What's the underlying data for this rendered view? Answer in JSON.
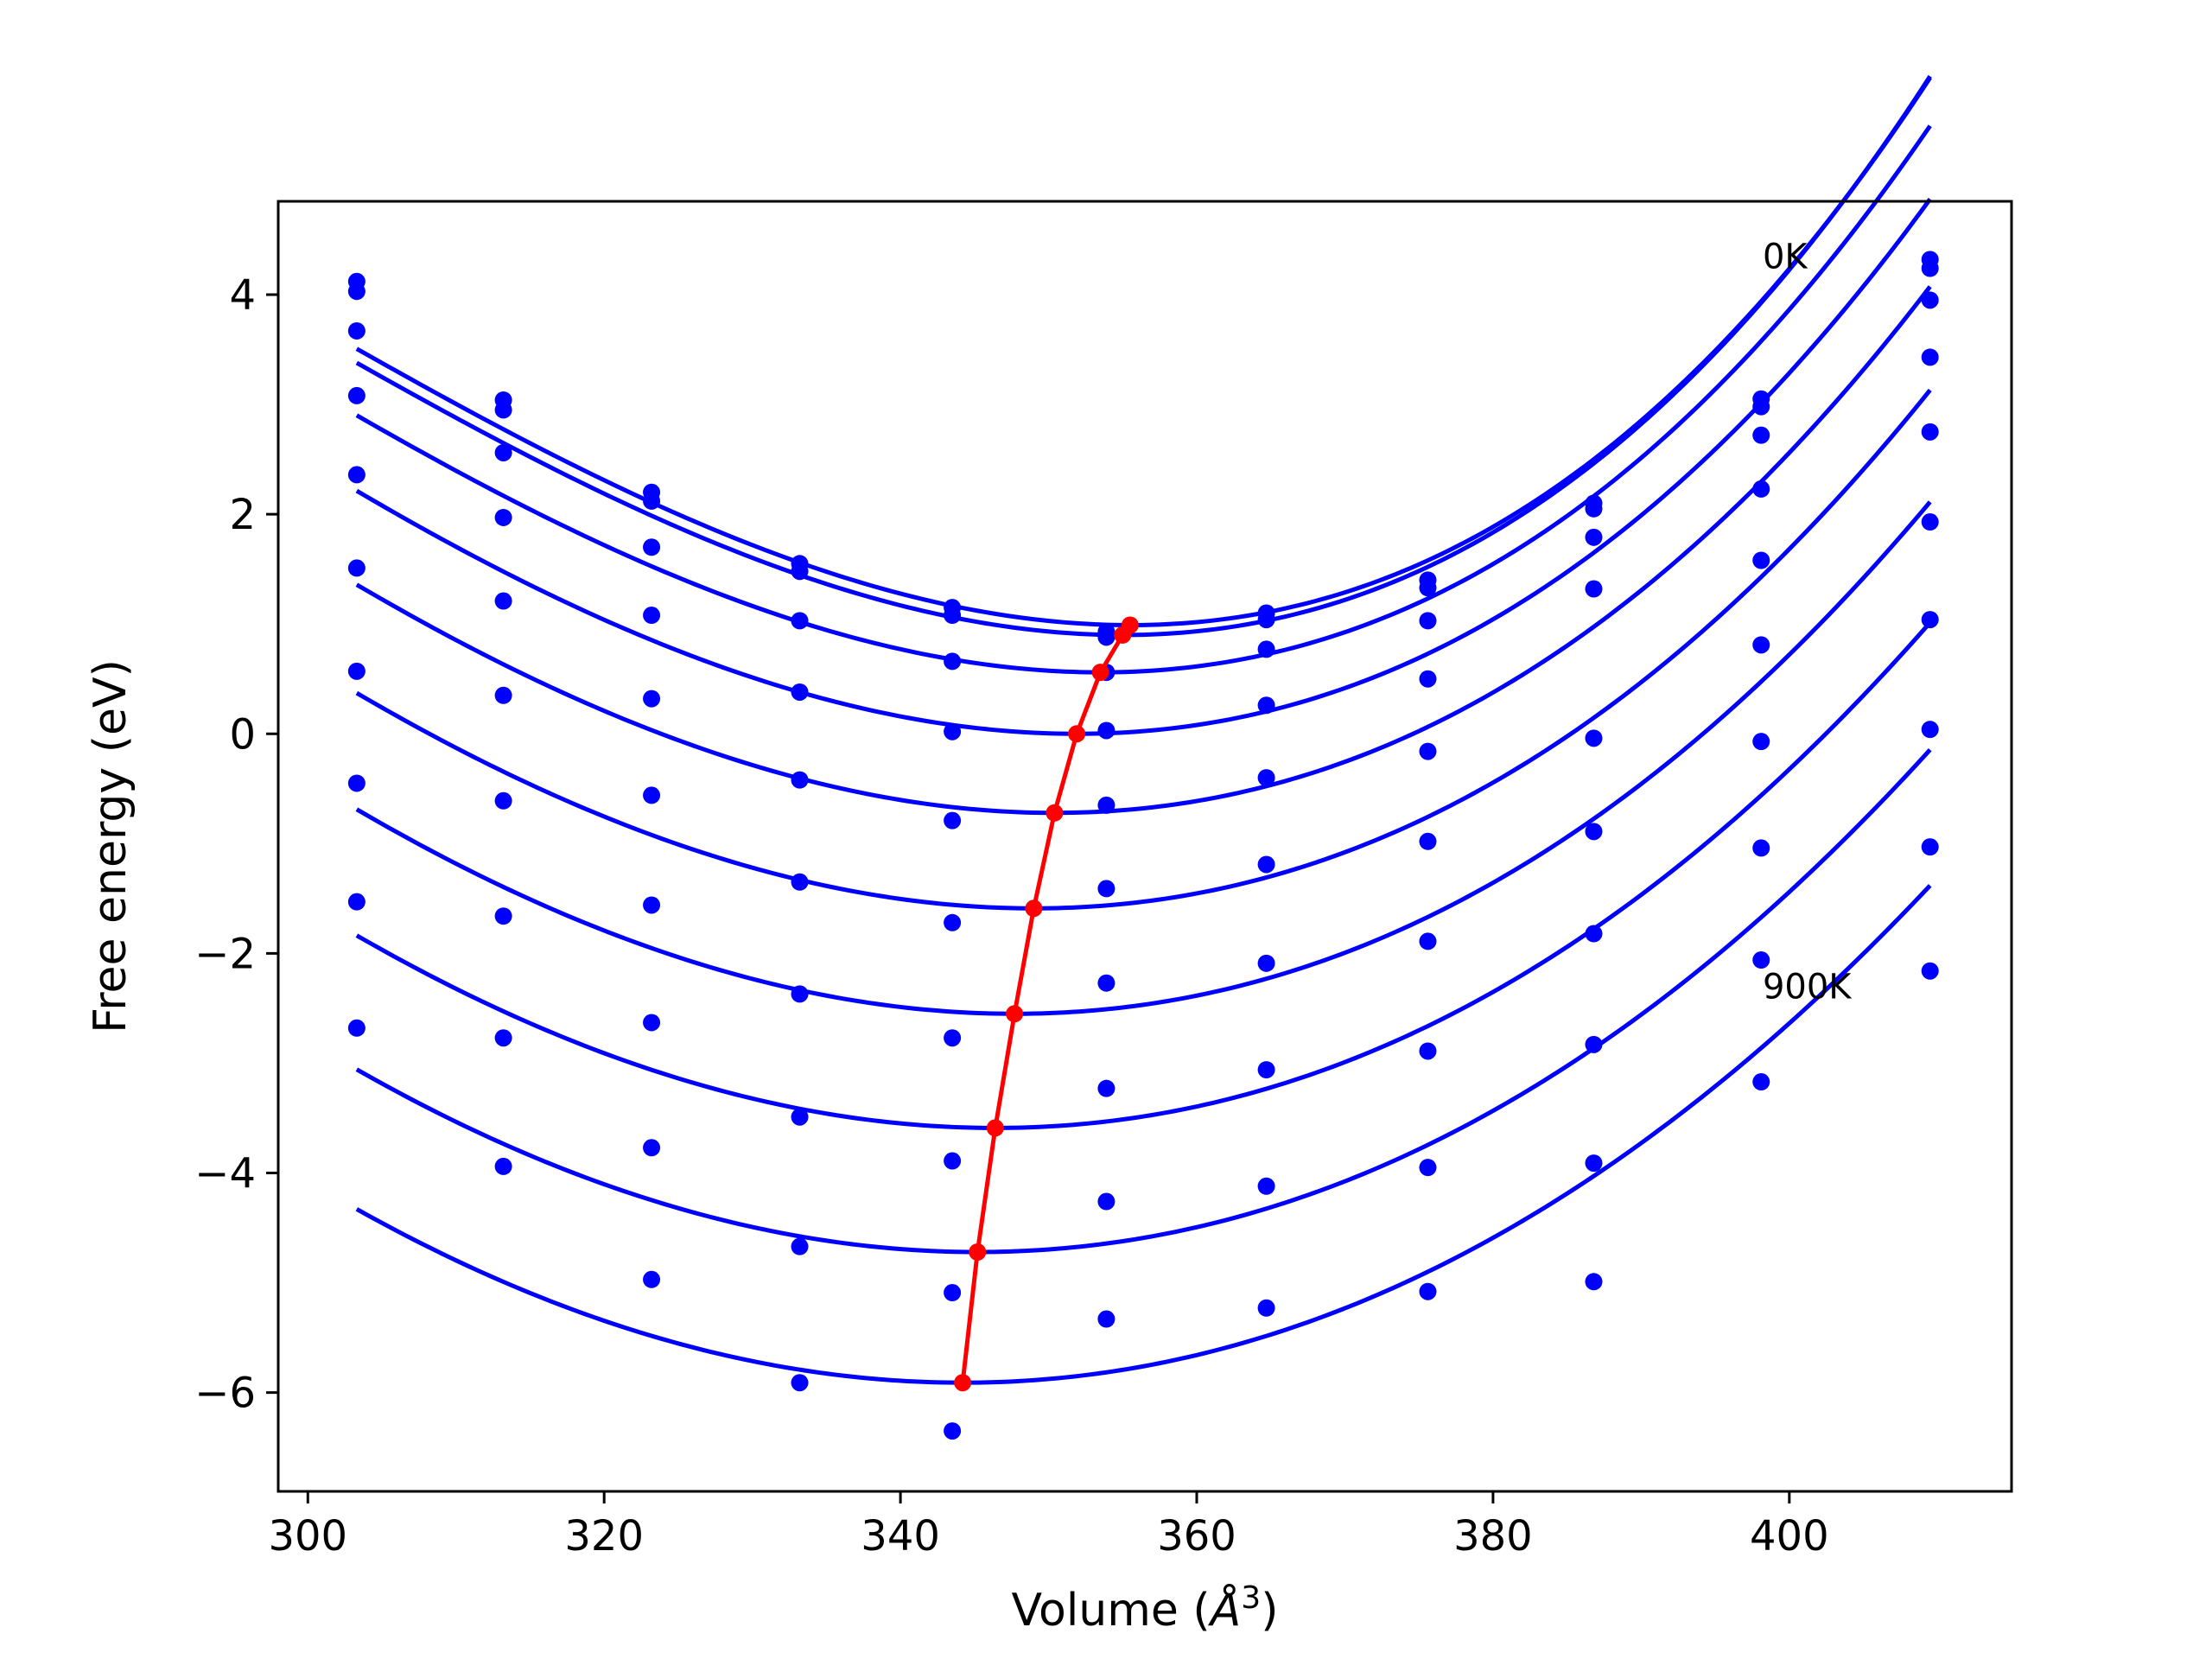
{
  "chart_data": {
    "type": "line",
    "title": "",
    "xlabel": "Volume ($\\AA^3$)",
    "ylabel": "Free energy (eV)",
    "xlim": [
      298.0,
      415.0
    ],
    "ylim": [
      -6.9,
      4.85
    ],
    "x_ticks": [
      300,
      320,
      340,
      360,
      380,
      400
    ],
    "x_tick_labels": [
      "300",
      "320",
      "340",
      "360",
      "380",
      "400"
    ],
    "y_ticks": [
      -6,
      -4,
      -2,
      0,
      2,
      4
    ],
    "y_tick_labels": [
      "−6",
      "−4",
      "−2",
      "0",
      "2",
      "4"
    ],
    "grid": false,
    "annotations": [
      {
        "text": "0K",
        "x": 398.2,
        "y": 4.35
      },
      {
        "text": "900K",
        "x": 398.2,
        "y": -2.3
      }
    ],
    "colors": {
      "isotherm": "#0000ff",
      "minimum_path": "#ff0000",
      "axes": "#000000"
    },
    "volumes": [
      303.3,
      313.2,
      323.2,
      333.2,
      343.5,
      353.9,
      364.7,
      375.6,
      386.8,
      398.1,
      409.5
    ],
    "series": [
      {
        "points": [
          4.12,
          3.04,
          2.2,
          1.55,
          1.15,
          0.93,
          1.1,
          1.4,
          2.1,
          3.05,
          4.32
        ],
        "fit_vmin": 355.5,
        "fit_fmin": 0.99,
        "fit_a": 0.00131,
        "fit_b": 7.4e-06
      },
      {
        "points": [
          4.03,
          2.95,
          2.12,
          1.48,
          1.08,
          0.88,
          1.04,
          1.33,
          2.05,
          2.98,
          4.24
        ],
        "fit_vmin": 355.0,
        "fit_fmin": 0.9,
        "fit_a": 0.00131,
        "fit_b": 7.4e-06
      },
      {
        "points": [
          3.67,
          2.56,
          1.7,
          1.03,
          0.66,
          0.56,
          0.77,
          1.03,
          1.79,
          2.72,
          3.95
        ],
        "fit_vmin": 353.5,
        "fit_fmin": 0.56,
        "fit_a": 0.00124,
        "fit_b": 6.2e-06
      },
      {
        "points": [
          3.08,
          1.97,
          1.08,
          0.38,
          0.02,
          0.03,
          0.26,
          0.5,
          1.32,
          2.23,
          3.43
        ],
        "fit_vmin": 351.9,
        "fit_fmin": 0.0,
        "fit_a": 0.00118,
        "fit_b": 5e-06
      },
      {
        "points": [
          2.36,
          1.21,
          0.32,
          -0.42,
          -0.79,
          -0.65,
          -0.4,
          -0.16,
          -0.04,
          1.58,
          2.75
        ],
        "fit_vmin": 350.4,
        "fit_fmin": -0.72,
        "fit_a": 0.00113,
        "fit_b": 4.1e-06
      },
      {
        "points": [
          1.51,
          0.35,
          -0.56,
          -1.35,
          -1.72,
          -1.41,
          -1.19,
          -0.98,
          -0.89,
          0.81,
          1.93
        ],
        "fit_vmin": 349.0,
        "fit_fmin": -1.59,
        "fit_a": 0.00109,
        "fit_b": 3.3e-06
      },
      {
        "points": [
          0.57,
          -0.61,
          -1.56,
          -2.37,
          -2.77,
          -2.27,
          -2.09,
          -1.89,
          -1.82,
          -0.07,
          1.04
        ],
        "fit_vmin": 347.7,
        "fit_fmin": -2.55,
        "fit_a": 0.00106,
        "fit_b": 2.6e-06
      },
      {
        "points": [
          -0.45,
          -1.66,
          -2.63,
          -3.49,
          -3.89,
          -3.23,
          -3.06,
          -2.89,
          -2.83,
          -1.04,
          0.04
        ],
        "fit_vmin": 346.4,
        "fit_fmin": -3.59,
        "fit_a": 0.00103,
        "fit_b": 2e-06
      },
      {
        "points": [
          -1.53,
          -2.77,
          -3.77,
          -4.67,
          -5.09,
          -4.26,
          -4.12,
          -3.95,
          -3.91,
          -2.06,
          -1.03
        ],
        "fit_vmin": 345.2,
        "fit_fmin": -4.72,
        "fit_a": 0.00101,
        "fit_b": 1.5e-06
      },
      {
        "points": [
          -2.68,
          -3.94,
          -4.97,
          -5.91,
          -6.35,
          -5.33,
          -5.23,
          -5.08,
          -4.99,
          -3.17,
          -2.16
        ],
        "fit_vmin": 344.2,
        "fit_fmin": -5.91,
        "fit_a": 0.00099,
        "fit_b": 1.1e-06
      }
    ],
    "minimum_path": {
      "x": [
        355.5,
        355.0,
        353.5,
        351.9,
        350.4,
        349.0,
        347.7,
        346.4,
        345.2,
        344.2
      ],
      "y": [
        0.99,
        0.9,
        0.56,
        0.0,
        -0.72,
        -1.59,
        -2.55,
        -3.59,
        -4.72,
        -5.91
      ]
    }
  }
}
